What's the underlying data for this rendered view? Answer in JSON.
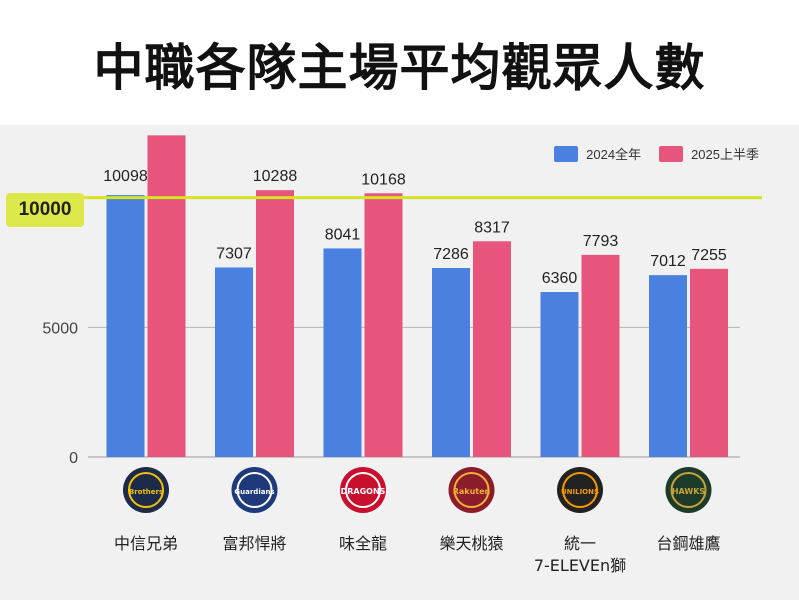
{
  "chart_data": {
    "type": "bar",
    "title": "中職各隊主場平均觀眾人數",
    "categories": [
      "中信兄弟",
      "富邦悍將",
      "味全龍",
      "樂天桃猿",
      "統一\n7-ELEVEn獅",
      "台鋼雄鷹"
    ],
    "series": [
      {
        "name": "2024全年",
        "color": "#4a80e0",
        "values": [
          10098,
          7307,
          8041,
          7286,
          6360,
          7012
        ]
      },
      {
        "name": "2025上半季",
        "color": "#e8557c",
        "values": [
          12400,
          10288,
          10168,
          8317,
          7793,
          7255
        ]
      }
    ],
    "value_labels": [
      [
        "10098",
        "7307",
        "8041",
        "7286",
        "6360",
        "7012"
      ],
      [
        "",
        "10288",
        "10168",
        "8317",
        "7793",
        "7255"
      ]
    ],
    "ylim": [
      0,
      12800
    ],
    "yticks": [
      0,
      5000
    ],
    "reference_line": {
      "value": 10000,
      "label": "10000",
      "color": "#d4e521"
    },
    "grid": true,
    "legend_position": "top-right"
  },
  "logos": [
    {
      "icon": "brothers-logo-icon",
      "text": "Brothers",
      "color": "#1e2a4a",
      "accent": "#f2c200"
    },
    {
      "icon": "guardians-logo-icon",
      "text": "Guardians",
      "color": "#1f3a7a",
      "accent": "#ffffff"
    },
    {
      "icon": "dragons-logo-icon",
      "text": "DRAGONS",
      "color": "#c8102e",
      "accent": "#ffffff"
    },
    {
      "icon": "monkeys-logo-icon",
      "text": "Rakuten",
      "color": "#8b1c2c",
      "accent": "#f2b233"
    },
    {
      "icon": "lions-logo-icon",
      "text": "UNILIONS",
      "color": "#222222",
      "accent": "#f29a00"
    },
    {
      "icon": "hawks-logo-icon",
      "text": "HAWKS",
      "color": "#1d3b2a",
      "accent": "#c9a23a"
    }
  ]
}
